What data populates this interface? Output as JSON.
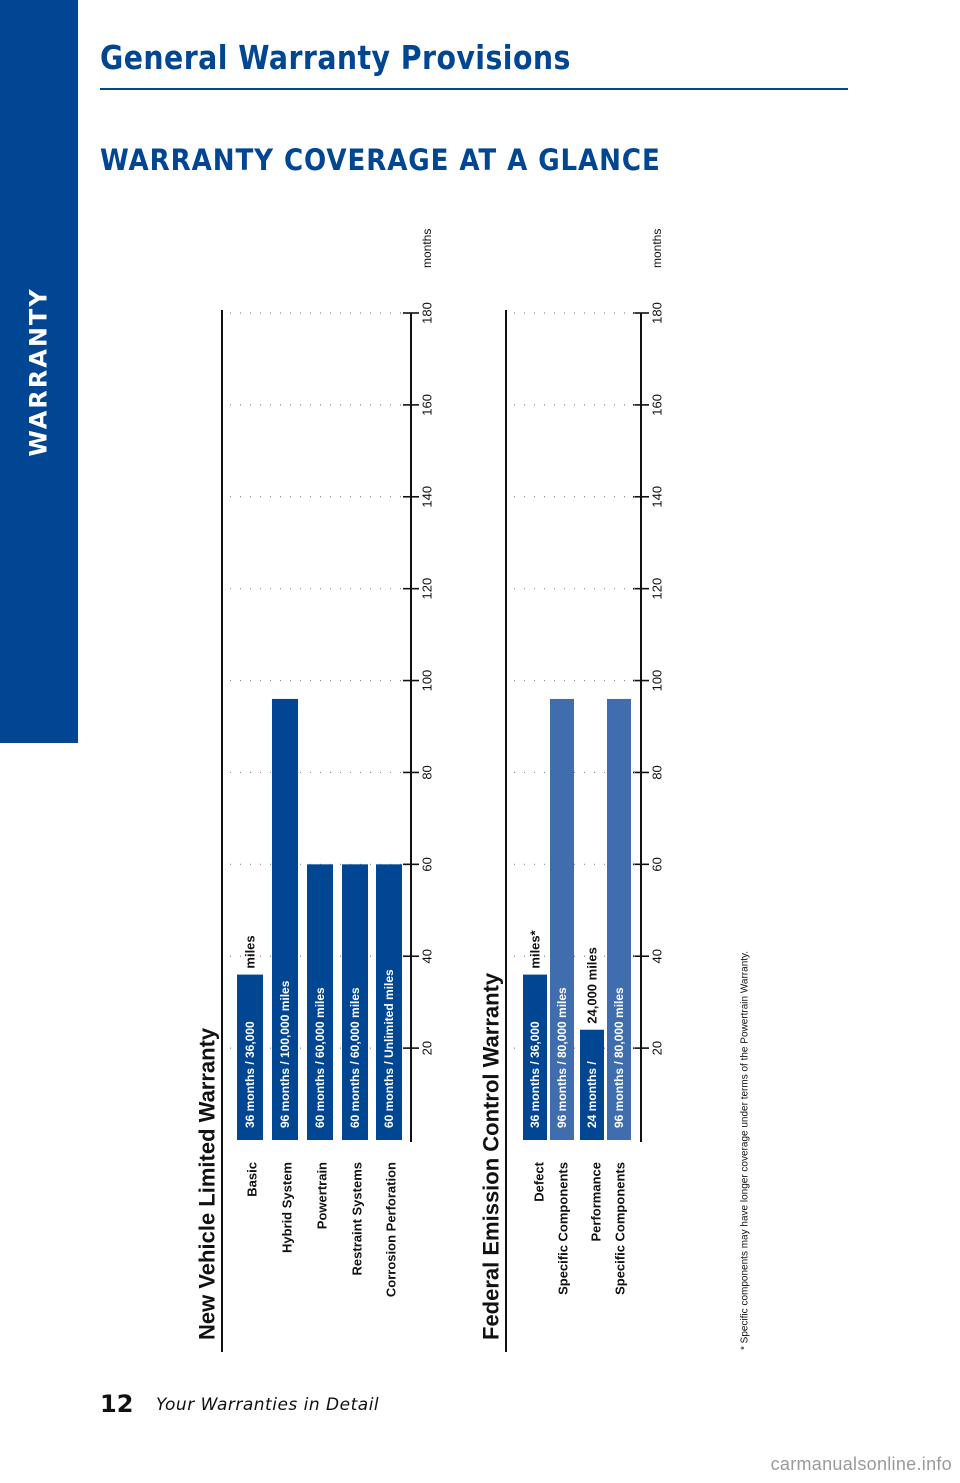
{
  "page": {
    "side_tab_label": "WARRANTY",
    "title": "General Warranty Provisions",
    "section_heading": "WARRANTY COVERAGE AT A GLANCE",
    "page_number": "12",
    "footer_text": "Your Warranties in Detail",
    "watermark": "carmanualsonline.info",
    "colors": {
      "brand_blue": "#004693",
      "light_blue": "#3F6DAE",
      "text": "#111111",
      "grid": "#888888"
    }
  },
  "chart_data": [
    {
      "type": "bar",
      "orientation": "horizontal",
      "title": "New Vehicle Limited Warranty",
      "axis_unit_label": "months",
      "xlim": [
        0,
        180
      ],
      "ticks": [
        20,
        40,
        60,
        80,
        100,
        120,
        140,
        160,
        180
      ],
      "grid": "dotted",
      "categories": [
        {
          "label": "Basic",
          "value": 36,
          "bar_text": "36 months  / 36,000",
          "after_text": "miles",
          "color": "#004693"
        },
        {
          "label": "Hybrid System",
          "value": 96,
          "bar_text": "96 months  /  100,000 miles",
          "after_text": "",
          "color": "#004693"
        },
        {
          "label": "Powertrain",
          "value": 60,
          "bar_text": "60 months  /  60,000 miles",
          "after_text": "",
          "color": "#004693"
        },
        {
          "label": "Restraint Systems",
          "value": 60,
          "bar_text": "60 months  /  60,000 miles",
          "after_text": "",
          "color": "#004693"
        },
        {
          "label": "Corrosion Perforation",
          "value": 60,
          "bar_text": "60 months  /  Unlimited miles",
          "after_text": "",
          "color": "#004693"
        }
      ]
    },
    {
      "type": "bar",
      "orientation": "horizontal",
      "title": "Federal Emission Control Warranty",
      "axis_unit_label": "months",
      "xlim": [
        0,
        180
      ],
      "ticks": [
        20,
        40,
        60,
        80,
        100,
        120,
        140,
        160,
        180
      ],
      "grid": "dotted",
      "groups": [
        {
          "label_lines": [
            "Defect",
            "Specific Components"
          ],
          "bars": [
            {
              "value": 36,
              "bar_text": "36 months  / 36,000",
              "after_text": "miles*",
              "color": "#004693"
            },
            {
              "value": 96,
              "bar_text": "96 months  /  80,000 miles",
              "after_text": "",
              "color": "#3F6DAE"
            }
          ]
        },
        {
          "label_lines": [
            "Performance",
            "Specific Components"
          ],
          "bars": [
            {
              "value": 24,
              "bar_text": "24 months  /",
              "after_text": "24,000 miles",
              "color": "#004693"
            },
            {
              "value": 96,
              "bar_text": "96 months  /  80,000 miles",
              "after_text": "",
              "color": "#3F6DAE"
            }
          ]
        }
      ],
      "footnote": "* Specific components may have longer coverage under terms of the Powertrain Warranty."
    }
  ]
}
